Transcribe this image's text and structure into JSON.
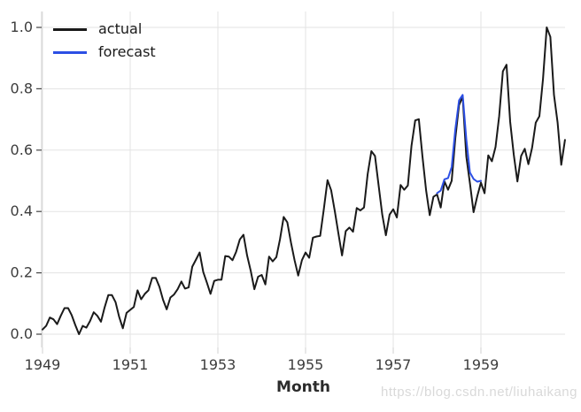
{
  "watermark": "https://blog.csdn.net/liuhaikang",
  "legend": {
    "position": "upper-left",
    "items": [
      {
        "label": "actual"
      },
      {
        "label": "forecast"
      }
    ]
  },
  "chart_data": {
    "type": "line",
    "title": "",
    "xlabel": "Month",
    "ylabel": "",
    "grid": true,
    "legend_position": "upper-left",
    "ylim": [
      0.0,
      1.0
    ],
    "xlim_years": [
      1949,
      1961
    ],
    "y_ticks": [
      0.0,
      0.2,
      0.4,
      0.6,
      0.8,
      1.0
    ],
    "y_tick_labels": [
      "0.0",
      "0.2",
      "0.4",
      "0.6",
      "0.8",
      "1.0"
    ],
    "x_tick_years": [
      1949,
      1951,
      1953,
      1955,
      1957,
      1959
    ],
    "x_tick_labels": [
      "1949",
      "1951",
      "1953",
      "1955",
      "1957",
      "1959"
    ],
    "colors": {
      "actual": "#1a1a1a",
      "forecast": "#2c4fe4",
      "grid": "#e3e3e3",
      "spine": "#d0d0d0",
      "y_tick_mark": "#444444",
      "x_tick_mark": "#d0d0d0",
      "tick_label": "#3d3d3d"
    },
    "series": [
      {
        "name": "actual",
        "color": "#1a1a1a",
        "start_year": 1949,
        "start_month": 1,
        "step_months": 1,
        "values": [
          0.0154,
          0.027,
          0.0541,
          0.0483,
          0.0328,
          0.0598,
          0.0849,
          0.0849,
          0.0618,
          0.029,
          0.0,
          0.027,
          0.0212,
          0.0425,
          0.0714,
          0.0598,
          0.0405,
          0.0869,
          0.1274,
          0.1274,
          0.1042,
          0.056,
          0.0193,
          0.0695,
          0.0792,
          0.0888,
          0.1429,
          0.1139,
          0.1313,
          0.1429,
          0.1834,
          0.1834,
          0.1544,
          0.112,
          0.0811,
          0.1197,
          0.1293,
          0.1467,
          0.1718,
          0.1486,
          0.1525,
          0.2201,
          0.2432,
          0.2664,
          0.2027,
          0.168,
          0.1313,
          0.1737,
          0.1776,
          0.1776,
          0.2548,
          0.2529,
          0.2413,
          0.2683,
          0.3089,
          0.3243,
          0.2568,
          0.2066,
          0.1467,
          0.1873,
          0.1931,
          0.1622,
          0.2529,
          0.2375,
          0.251,
          0.3089,
          0.3822,
          0.3649,
          0.2992,
          0.2413,
          0.1911,
          0.2413,
          0.2664,
          0.249,
          0.3147,
          0.3185,
          0.3205,
          0.4073,
          0.5019,
          0.4691,
          0.4015,
          0.3282,
          0.2568,
          0.3359,
          0.3475,
          0.334,
          0.4112,
          0.4035,
          0.4131,
          0.5212,
          0.5965,
          0.5811,
          0.4846,
          0.39,
          0.3224,
          0.39,
          0.4073,
          0.3803,
          0.4865,
          0.471,
          0.4846,
          0.6139,
          0.6969,
          0.7008,
          0.5792,
          0.4691,
          0.388,
          0.4479,
          0.4556,
          0.4131,
          0.4981,
          0.471,
          0.5,
          0.639,
          0.7471,
          0.7741,
          0.5792,
          0.4923,
          0.3977,
          0.4498,
          0.4942,
          0.4595,
          0.583,
          0.5637,
          0.61,
          0.7104,
          0.8571,
          0.8784,
          0.6931,
          0.5849,
          0.4981,
          0.5812,
          0.6042,
          0.5541,
          0.6081,
          0.6892,
          0.7104,
          0.832,
          1.0,
          0.9691,
          0.7799,
          0.6892,
          0.5521,
          0.6332
        ]
      },
      {
        "name": "forecast",
        "color": "#2c4fe4",
        "start_year": 1958,
        "start_month": 1,
        "step_months": 1,
        "values": [
          0.46,
          0.468,
          0.505,
          0.509,
          0.545,
          0.668,
          0.762,
          0.78,
          0.636,
          0.527,
          0.506,
          0.497,
          0.5
        ]
      }
    ]
  }
}
